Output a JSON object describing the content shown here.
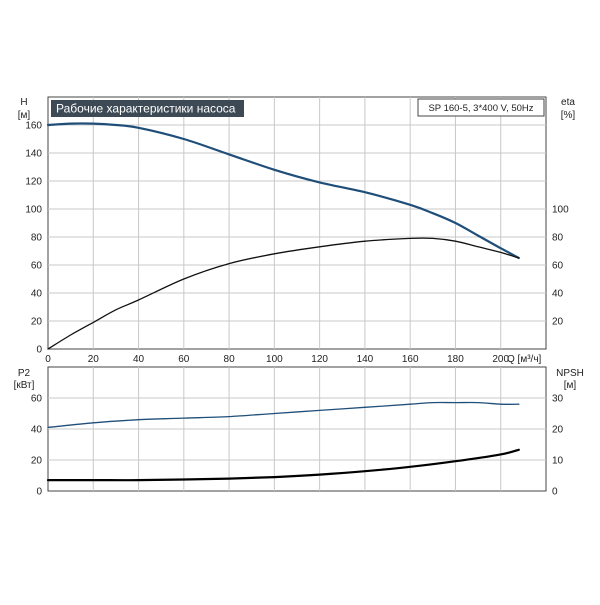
{
  "chart_data": [
    {
      "type": "line",
      "title": "Рабочие характеристики насоса",
      "info_label": "SP 160-5, 3*400 V, 50Hz",
      "xlabel": "Q [м³/ч]",
      "x_ticks": [
        0,
        20,
        40,
        60,
        80,
        100,
        120,
        140,
        160,
        180,
        200
      ],
      "xlim": [
        0,
        220
      ],
      "left_axis": {
        "name": "H",
        "unit": "[м]",
        "ticks": [
          0,
          20,
          40,
          60,
          80,
          100,
          120,
          140,
          160
        ],
        "lim": [
          0,
          180
        ]
      },
      "right_axis": {
        "name": "eta",
        "unit": "[%]",
        "ticks": [
          0,
          20,
          40,
          60,
          80,
          100
        ],
        "lim": [
          0,
          180
        ]
      },
      "grid": true,
      "series": [
        {
          "axis": "left",
          "color": "#1f4e79",
          "x": [
            0,
            10,
            20,
            30,
            40,
            60,
            80,
            100,
            120,
            140,
            160,
            170,
            180,
            190,
            200,
            208
          ],
          "y": [
            160,
            161,
            161,
            160,
            158,
            150,
            139,
            128,
            119,
            112,
            103,
            97,
            90,
            81,
            72,
            65
          ]
        },
        {
          "axis": "right",
          "color": "#111111",
          "x": [
            0,
            10,
            20,
            30,
            40,
            60,
            80,
            100,
            120,
            140,
            160,
            170,
            180,
            190,
            200,
            208
          ],
          "y": [
            0,
            10,
            19,
            28,
            35,
            50,
            61,
            68,
            73,
            77,
            79,
            79,
            77,
            73,
            69,
            65
          ]
        }
      ]
    },
    {
      "type": "line",
      "xlim": [
        0,
        220
      ],
      "x_ticks": [
        0,
        20,
        40,
        60,
        80,
        100,
        120,
        140,
        160,
        180,
        200
      ],
      "left_axis": {
        "name": "P2",
        "unit": "[кВт]",
        "ticks": [
          0,
          20,
          40,
          60
        ],
        "lim": [
          0,
          80
        ]
      },
      "right_axis": {
        "name": "NPSH",
        "unit": "[м]",
        "ticks": [
          0,
          10,
          20,
          30
        ],
        "lim": [
          0,
          40
        ]
      },
      "grid": true,
      "series": [
        {
          "axis": "left",
          "color": "#1f4e79",
          "x": [
            0,
            20,
            40,
            60,
            80,
            100,
            120,
            140,
            160,
            170,
            180,
            190,
            200,
            208
          ],
          "y": [
            41,
            44,
            46,
            47,
            48,
            50,
            52,
            54,
            56,
            57,
            57,
            57,
            56,
            56
          ]
        },
        {
          "axis": "right",
          "color": "#000000",
          "x": [
            0,
            20,
            40,
            60,
            80,
            100,
            120,
            140,
            160,
            180,
            200,
            208
          ],
          "y": [
            3.5,
            3.5,
            3.5,
            3.7,
            4.0,
            4.5,
            5.3,
            6.4,
            7.8,
            9.6,
            11.8,
            13.3
          ]
        }
      ]
    }
  ]
}
